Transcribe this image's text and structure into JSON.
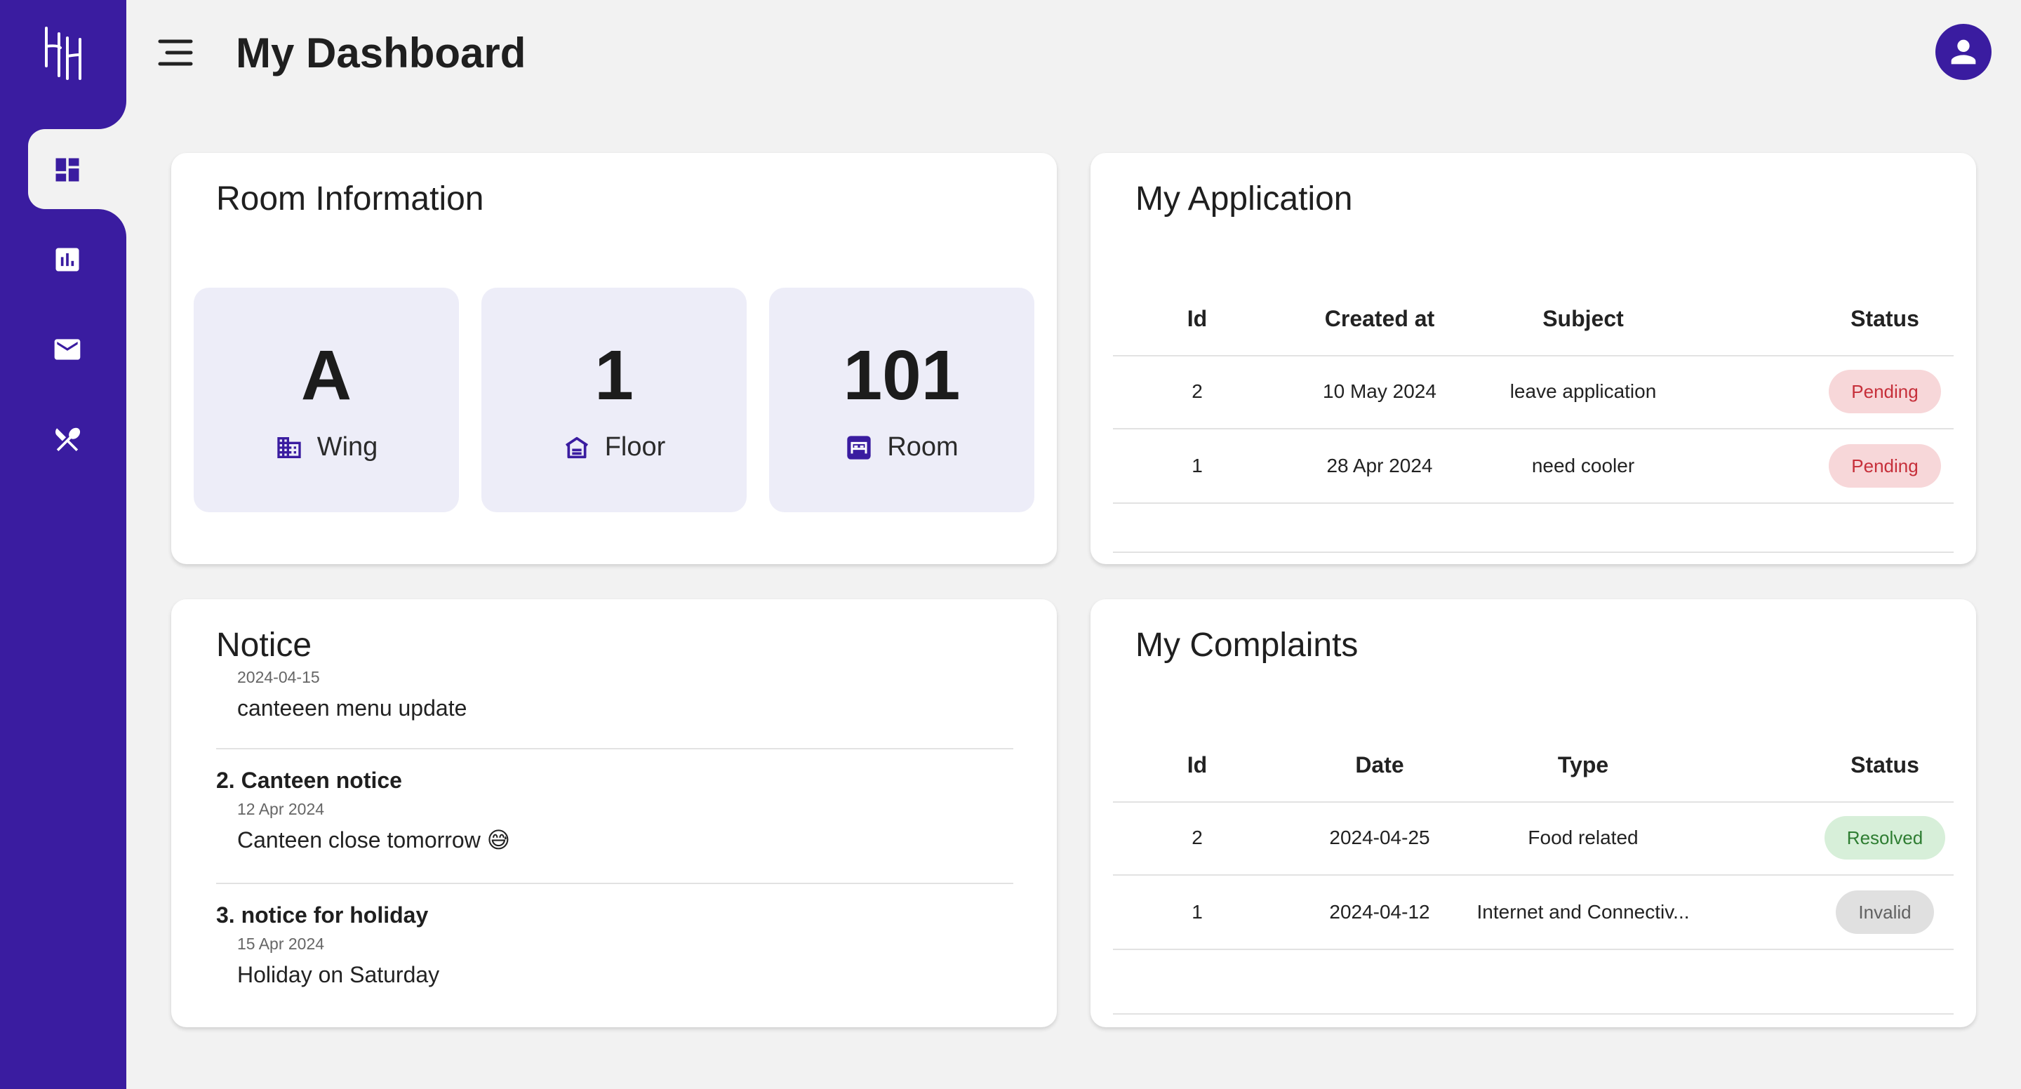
{
  "app": {
    "page_title": "My Dashboard"
  },
  "colors": {
    "brand": "#3a1ca0",
    "pending_bg": "#f7d7d9",
    "pending_fg": "#c62f3a",
    "resolved_bg": "#d7efd9",
    "resolved_fg": "#2e7d32",
    "invalid_bg": "#e0e0e0",
    "invalid_fg": "#616161"
  },
  "sidebar": {
    "items": [
      {
        "icon": "dashboard-icon",
        "active": true
      },
      {
        "icon": "bar-chart-icon",
        "active": false
      },
      {
        "icon": "mail-icon",
        "active": false
      },
      {
        "icon": "restaurant-icon",
        "active": false
      }
    ]
  },
  "room_info": {
    "title": "Room Information",
    "tiles": [
      {
        "value": "A",
        "label": "Wing",
        "icon": "building-icon"
      },
      {
        "value": "1",
        "label": "Floor",
        "icon": "floor-icon"
      },
      {
        "value": "101",
        "label": "Room",
        "icon": "bed-icon"
      }
    ]
  },
  "applications": {
    "title": "My Application",
    "headers": [
      "Id",
      "Created at",
      "Subject",
      "Status"
    ],
    "rows": [
      {
        "id": "2",
        "created": "10 May 2024",
        "subject": "leave application",
        "status": "Pending"
      },
      {
        "id": "1",
        "created": "28 Apr 2024",
        "subject": "need cooler",
        "status": "Pending"
      }
    ]
  },
  "notice": {
    "title": "Notice",
    "items": [
      {
        "title": "",
        "date": "2024-04-15",
        "body": "canteeen menu update"
      },
      {
        "title": "2. Canteen notice",
        "date": "12 Apr 2024",
        "body": "Canteen close tomorrow 😅"
      },
      {
        "title": "3. notice for holiday",
        "date": "15 Apr 2024",
        "body": "Holiday on Saturday"
      }
    ]
  },
  "complaints": {
    "title": "My Complaints",
    "headers": [
      "Id",
      "Date",
      "Type",
      "Status"
    ],
    "rows": [
      {
        "id": "2",
        "date": "2024-04-25",
        "type": "Food related",
        "status": "Resolved"
      },
      {
        "id": "1",
        "date": "2024-04-12",
        "type": "Internet and Connectiv...",
        "status": "Invalid"
      }
    ]
  }
}
